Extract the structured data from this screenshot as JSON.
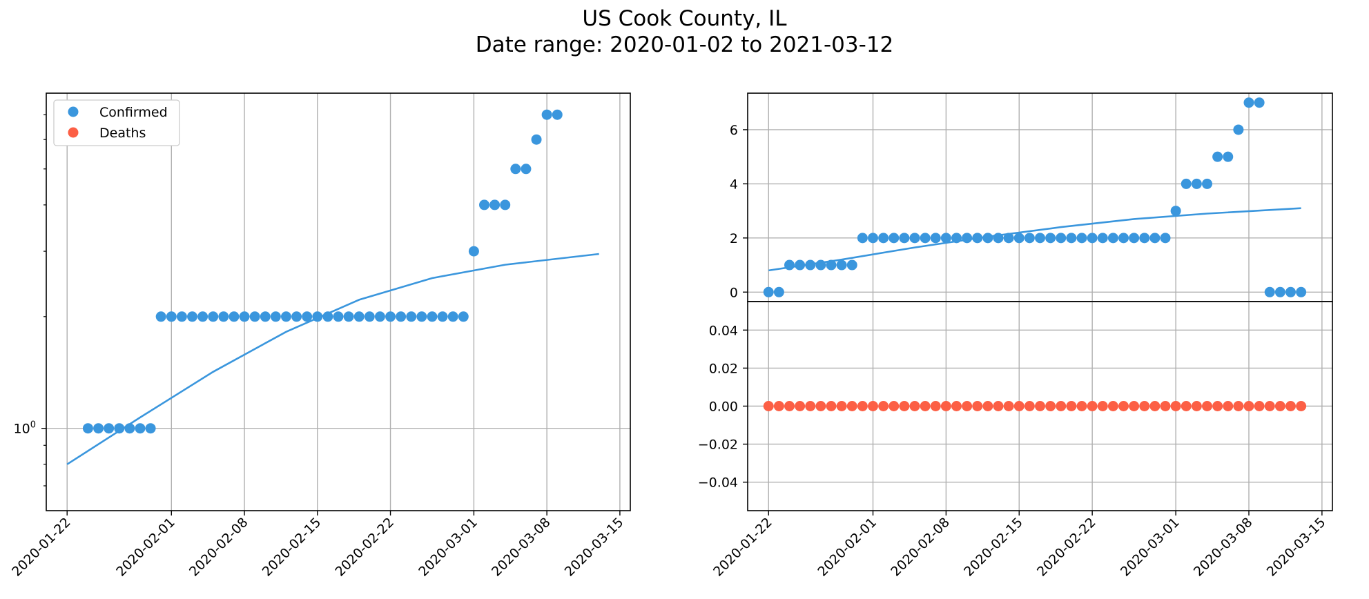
{
  "title": "US Cook County, IL",
  "subtitle": "Date range: 2020-01-02 to 2021-03-12",
  "colors": {
    "confirmed": "#3a96dd",
    "deaths": "#fc5f45",
    "grid": "#b0b0b0"
  },
  "chart_data": [
    {
      "type": "scatter",
      "panel": "left",
      "yscale": "log",
      "grid": true,
      "legend": {
        "placement": "top-left",
        "entries": [
          "Confirmed",
          "Deaths"
        ]
      },
      "xlim": [
        "2020-01-20",
        "2020-03-16"
      ],
      "ylim": [
        0.6,
        8.0
      ],
      "x_ticks": [
        "2020-01-22",
        "2020-02-01",
        "2020-02-08",
        "2020-02-15",
        "2020-02-22",
        "2020-03-01",
        "2020-03-08",
        "2020-03-15"
      ],
      "y_tick_labels": [
        {
          "value": 1,
          "base": "10",
          "exp": "0"
        }
      ],
      "series": [
        {
          "name": "Confirmed",
          "color": "#3a96dd",
          "x": [
            "2020-01-24",
            "2020-01-25",
            "2020-01-26",
            "2020-01-27",
            "2020-01-28",
            "2020-01-29",
            "2020-01-30",
            "2020-01-31",
            "2020-02-01",
            "2020-02-02",
            "2020-02-03",
            "2020-02-04",
            "2020-02-05",
            "2020-02-06",
            "2020-02-07",
            "2020-02-08",
            "2020-02-09",
            "2020-02-10",
            "2020-02-11",
            "2020-02-12",
            "2020-02-13",
            "2020-02-14",
            "2020-02-15",
            "2020-02-16",
            "2020-02-17",
            "2020-02-18",
            "2020-02-19",
            "2020-02-20",
            "2020-02-21",
            "2020-02-22",
            "2020-02-23",
            "2020-02-24",
            "2020-02-25",
            "2020-02-26",
            "2020-02-27",
            "2020-02-28",
            "2020-02-29",
            "2020-03-01",
            "2020-03-02",
            "2020-03-03",
            "2020-03-04",
            "2020-03-05",
            "2020-03-06",
            "2020-03-07",
            "2020-03-08",
            "2020-03-09"
          ],
          "y": [
            1,
            1,
            1,
            1,
            1,
            1,
            1,
            2,
            2,
            2,
            2,
            2,
            2,
            2,
            2,
            2,
            2,
            2,
            2,
            2,
            2,
            2,
            2,
            2,
            2,
            2,
            2,
            2,
            2,
            2,
            2,
            2,
            2,
            2,
            2,
            2,
            2,
            3,
            4,
            4,
            4,
            5,
            5,
            6,
            7,
            7
          ]
        },
        {
          "name": "Confirmed fit",
          "type": "line",
          "color": "#3a96dd",
          "x": [
            "2020-01-22",
            "2020-01-29",
            "2020-02-05",
            "2020-02-12",
            "2020-02-19",
            "2020-02-26",
            "2020-03-04",
            "2020-03-13"
          ],
          "y": [
            0.8,
            1.07,
            1.42,
            1.82,
            2.22,
            2.54,
            2.76,
            2.95
          ]
        }
      ]
    },
    {
      "type": "scatter",
      "panel": "right-top",
      "yscale": "linear",
      "grid": true,
      "xlim": [
        "2020-01-20",
        "2020-03-16"
      ],
      "ylim": [
        -0.35,
        7.35
      ],
      "y_ticks": [
        0,
        2,
        4,
        6
      ],
      "series": [
        {
          "name": "Confirmed",
          "color": "#3a96dd",
          "x": [
            "2020-01-22",
            "2020-01-23",
            "2020-01-24",
            "2020-01-25",
            "2020-01-26",
            "2020-01-27",
            "2020-01-28",
            "2020-01-29",
            "2020-01-30",
            "2020-01-31",
            "2020-02-01",
            "2020-02-02",
            "2020-02-03",
            "2020-02-04",
            "2020-02-05",
            "2020-02-06",
            "2020-02-07",
            "2020-02-08",
            "2020-02-09",
            "2020-02-10",
            "2020-02-11",
            "2020-02-12",
            "2020-02-13",
            "2020-02-14",
            "2020-02-15",
            "2020-02-16",
            "2020-02-17",
            "2020-02-18",
            "2020-02-19",
            "2020-02-20",
            "2020-02-21",
            "2020-02-22",
            "2020-02-23",
            "2020-02-24",
            "2020-02-25",
            "2020-02-26",
            "2020-02-27",
            "2020-02-28",
            "2020-02-29",
            "2020-03-01",
            "2020-03-02",
            "2020-03-03",
            "2020-03-04",
            "2020-03-05",
            "2020-03-06",
            "2020-03-07",
            "2020-03-08",
            "2020-03-09",
            "2020-03-10",
            "2020-03-11",
            "2020-03-12",
            "2020-03-13"
          ],
          "y": [
            0,
            0,
            1,
            1,
            1,
            1,
            1,
            1,
            1,
            2,
            2,
            2,
            2,
            2,
            2,
            2,
            2,
            2,
            2,
            2,
            2,
            2,
            2,
            2,
            2,
            2,
            2,
            2,
            2,
            2,
            2,
            2,
            2,
            2,
            2,
            2,
            2,
            2,
            2,
            3,
            4,
            4,
            4,
            5,
            5,
            6,
            7,
            7,
            0,
            0,
            0,
            0
          ]
        },
        {
          "name": "Confirmed fit",
          "type": "line",
          "color": "#3a96dd",
          "x": [
            "2020-01-22",
            "2020-01-29",
            "2020-02-05",
            "2020-02-12",
            "2020-02-19",
            "2020-02-26",
            "2020-03-04",
            "2020-03-13"
          ],
          "y": [
            0.8,
            1.2,
            1.65,
            2.05,
            2.4,
            2.7,
            2.9,
            3.1
          ]
        }
      ]
    },
    {
      "type": "scatter",
      "panel": "right-bottom",
      "yscale": "linear",
      "grid": true,
      "xlim": [
        "2020-01-20",
        "2020-03-16"
      ],
      "ylim": [
        -0.055,
        0.055
      ],
      "x_ticks": [
        "2020-01-22",
        "2020-02-01",
        "2020-02-08",
        "2020-02-15",
        "2020-02-22",
        "2020-03-01",
        "2020-03-08",
        "2020-03-15"
      ],
      "y_ticks": [
        -0.04,
        -0.02,
        0.0,
        0.02,
        0.04
      ],
      "y_tick_labels": [
        "−0.04",
        "−0.02",
        "0.00",
        "0.02",
        "0.04"
      ],
      "series": [
        {
          "name": "Deaths",
          "color": "#fc5f45",
          "x": [
            "2020-01-22",
            "2020-01-23",
            "2020-01-24",
            "2020-01-25",
            "2020-01-26",
            "2020-01-27",
            "2020-01-28",
            "2020-01-29",
            "2020-01-30",
            "2020-01-31",
            "2020-02-01",
            "2020-02-02",
            "2020-02-03",
            "2020-02-04",
            "2020-02-05",
            "2020-02-06",
            "2020-02-07",
            "2020-02-08",
            "2020-02-09",
            "2020-02-10",
            "2020-02-11",
            "2020-02-12",
            "2020-02-13",
            "2020-02-14",
            "2020-02-15",
            "2020-02-16",
            "2020-02-17",
            "2020-02-18",
            "2020-02-19",
            "2020-02-20",
            "2020-02-21",
            "2020-02-22",
            "2020-02-23",
            "2020-02-24",
            "2020-02-25",
            "2020-02-26",
            "2020-02-27",
            "2020-02-28",
            "2020-02-29",
            "2020-03-01",
            "2020-03-02",
            "2020-03-03",
            "2020-03-04",
            "2020-03-05",
            "2020-03-06",
            "2020-03-07",
            "2020-03-08",
            "2020-03-09",
            "2020-03-10",
            "2020-03-11",
            "2020-03-12",
            "2020-03-13"
          ],
          "y": [
            0,
            0,
            0,
            0,
            0,
            0,
            0,
            0,
            0,
            0,
            0,
            0,
            0,
            0,
            0,
            0,
            0,
            0,
            0,
            0,
            0,
            0,
            0,
            0,
            0,
            0,
            0,
            0,
            0,
            0,
            0,
            0,
            0,
            0,
            0,
            0,
            0,
            0,
            0,
            0,
            0,
            0,
            0,
            0,
            0,
            0,
            0,
            0,
            0,
            0,
            0,
            0
          ]
        }
      ]
    }
  ]
}
